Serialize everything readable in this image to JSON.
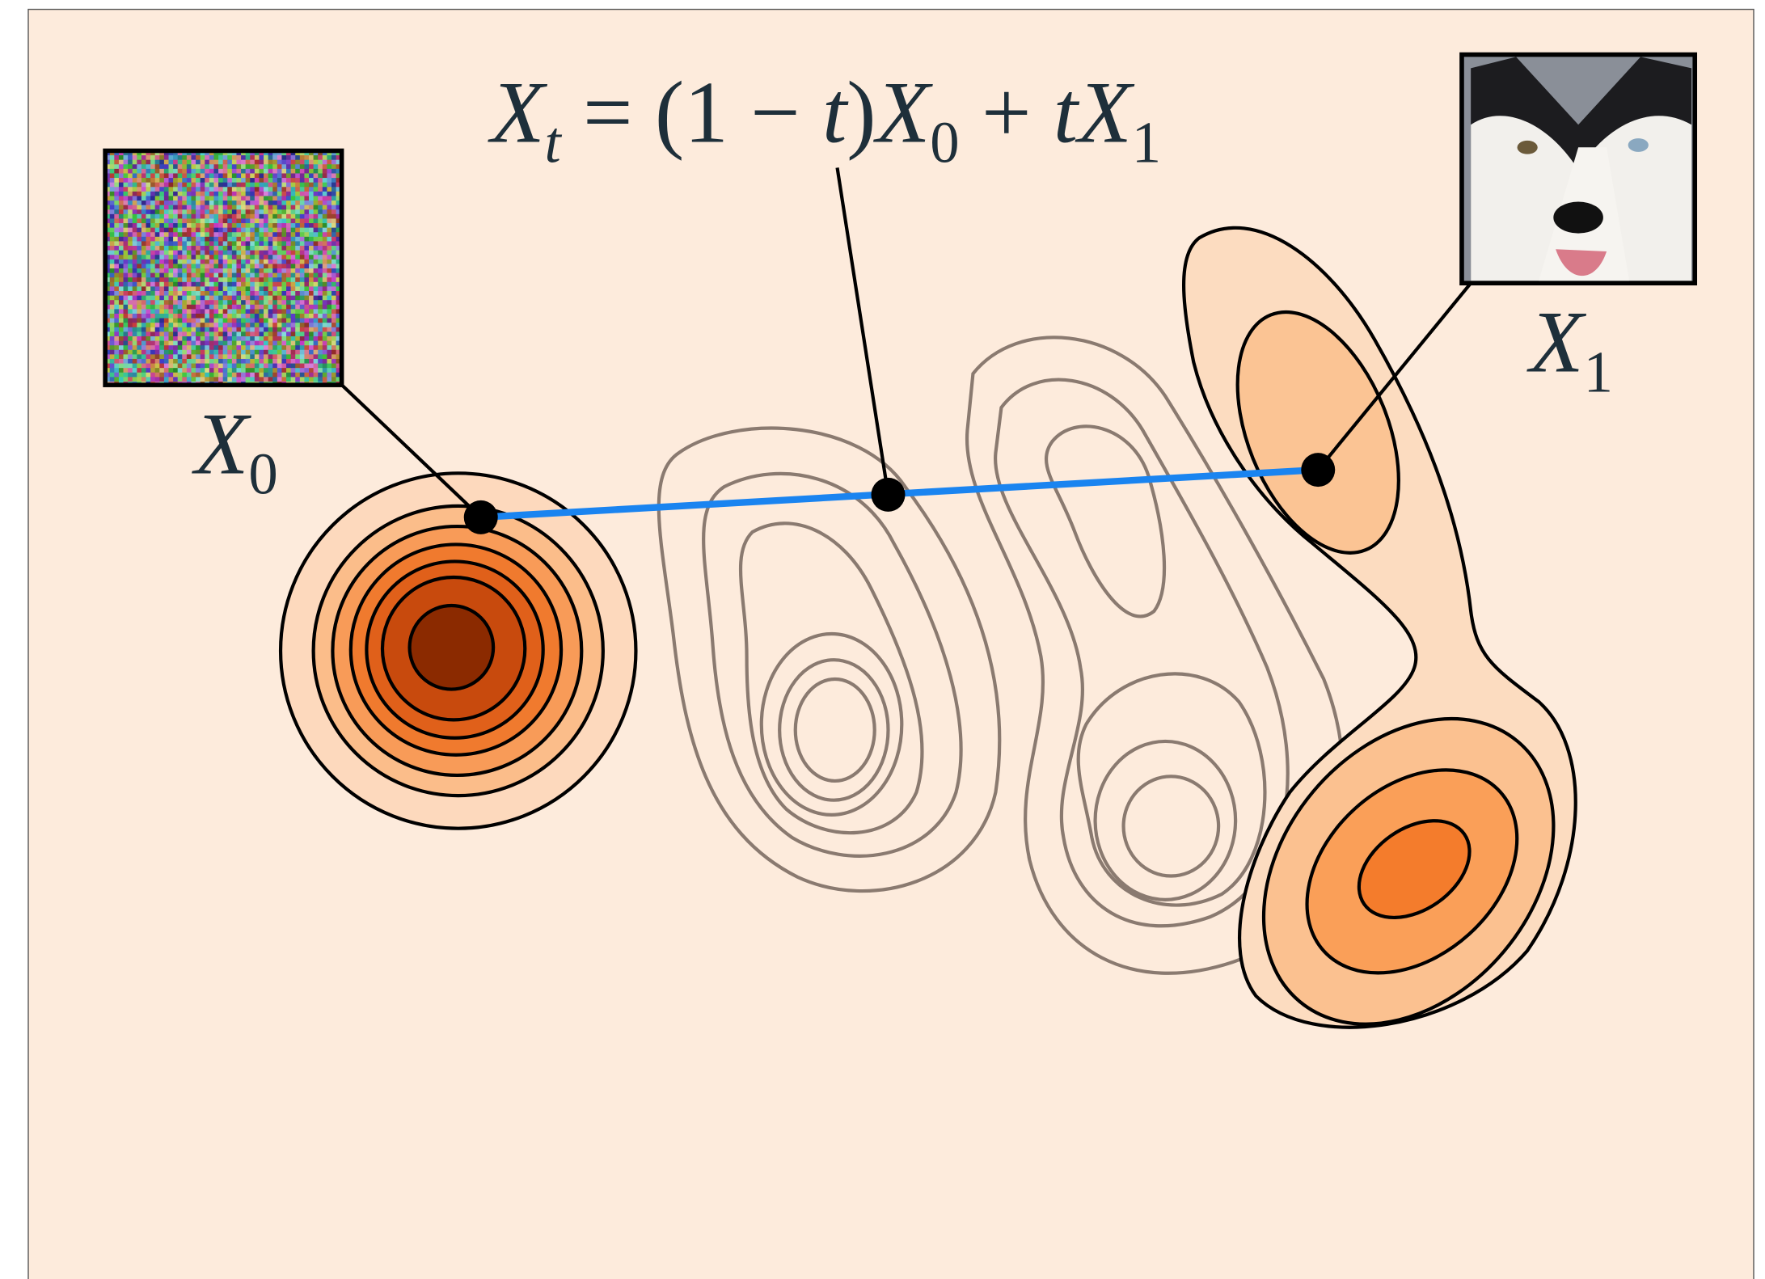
{
  "formula": {
    "parts": [
      "X",
      "t",
      " = (1 − ",
      "t",
      ")",
      "X",
      "0",
      " + ",
      "t",
      "X",
      "1"
    ]
  },
  "source_label": {
    "main": "X",
    "sub": "0"
  },
  "target_label": {
    "main": "X",
    "sub": "1"
  }
}
